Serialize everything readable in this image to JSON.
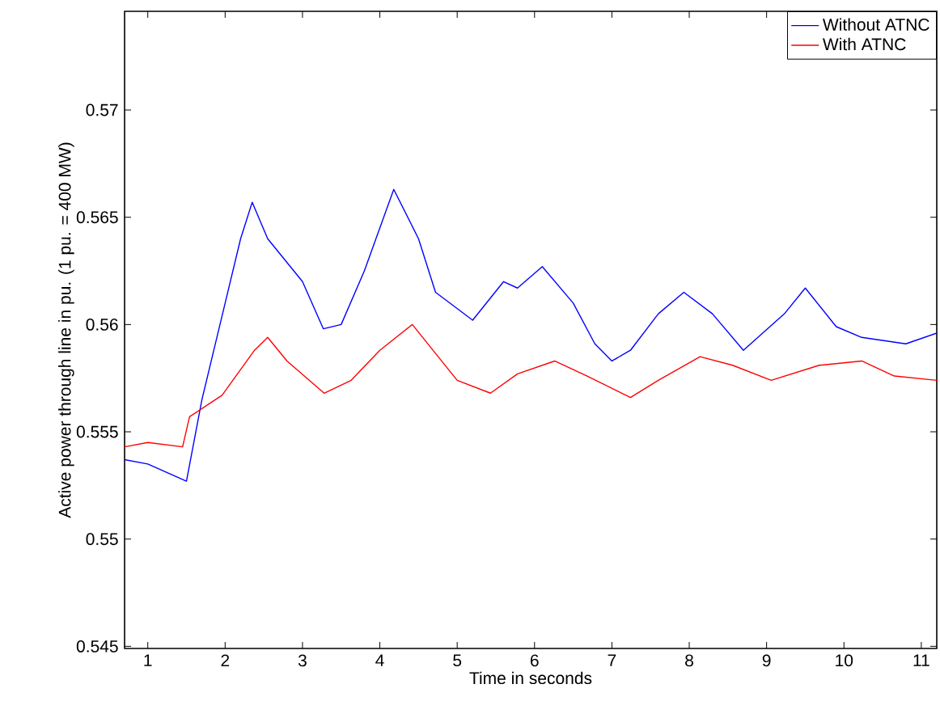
{
  "chart_data": {
    "type": "line",
    "xlabel": "Time in seconds",
    "ylabel": "Active power through line in pu. (1 pu. = 400 MW)",
    "xlim": [
      0.7,
      11.2
    ],
    "ylim": [
      0.5449,
      0.5746
    ],
    "xticks": [
      1,
      2,
      3,
      4,
      5,
      6,
      7,
      8,
      9,
      10,
      11
    ],
    "yticks": [
      0.545,
      0.55,
      0.555,
      0.56,
      0.565,
      0.57
    ],
    "legend": "top right",
    "grid": false,
    "line_style": "solid",
    "marker": "none",
    "series": [
      {
        "name": "Without ATNC",
        "color": "#0000ff",
        "x": [
          0.7,
          1.0,
          1.5,
          1.7,
          2.0,
          2.2,
          2.35,
          2.55,
          3.0,
          3.27,
          3.5,
          3.8,
          4.18,
          4.5,
          4.72,
          5.2,
          5.6,
          5.78,
          6.1,
          6.5,
          6.78,
          7.0,
          7.24,
          7.6,
          7.93,
          8.3,
          8.7,
          9.23,
          9.5,
          9.9,
          10.23,
          10.8,
          11.2
        ],
        "values": [
          0.5537,
          0.5535,
          0.5527,
          0.5565,
          0.561,
          0.564,
          0.5657,
          0.564,
          0.562,
          0.5598,
          0.56,
          0.5625,
          0.5663,
          0.564,
          0.5615,
          0.5602,
          0.562,
          0.5617,
          0.5627,
          0.561,
          0.5591,
          0.5583,
          0.5588,
          0.5605,
          0.5615,
          0.5605,
          0.5588,
          0.5605,
          0.5617,
          0.5599,
          0.5594,
          0.5591,
          0.5596
        ]
      },
      {
        "name": "With ATNC",
        "color": "#ff0000",
        "x": [
          0.7,
          1.0,
          1.45,
          1.54,
          1.96,
          2.38,
          2.55,
          2.8,
          3.28,
          3.63,
          4.0,
          4.42,
          5.0,
          5.43,
          5.78,
          6.26,
          6.68,
          7.24,
          7.6,
          8.14,
          8.56,
          9.06,
          9.68,
          10.23,
          10.65,
          11.2
        ],
        "values": [
          0.5543,
          0.5545,
          0.5543,
          0.5557,
          0.5567,
          0.5588,
          0.5594,
          0.5583,
          0.5568,
          0.5574,
          0.5588,
          0.56,
          0.5574,
          0.5568,
          0.5577,
          0.5583,
          0.5576,
          0.5566,
          0.5574,
          0.5585,
          0.5581,
          0.5574,
          0.5581,
          0.5583,
          0.5576,
          0.5574
        ]
      }
    ]
  }
}
